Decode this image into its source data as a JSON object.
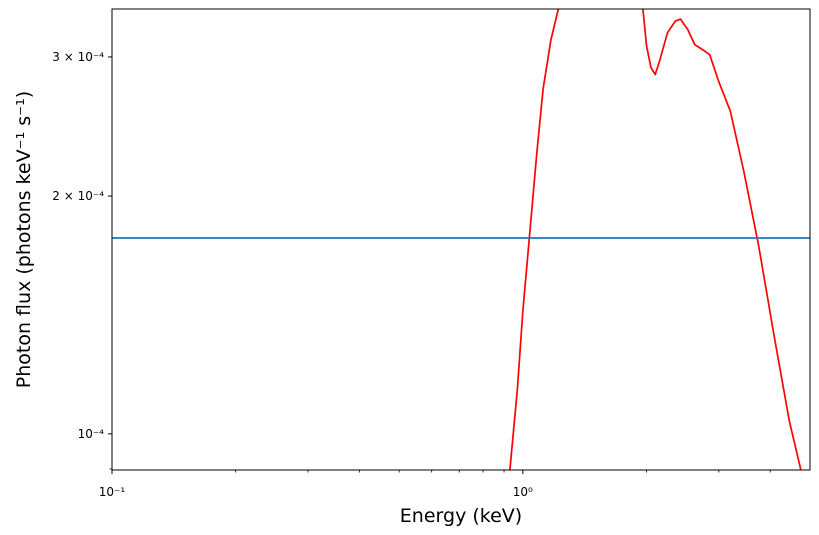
{
  "chart_data": {
    "type": "line",
    "xlabel": "Energy (keV)",
    "ylabel": "Photon flux (photons keV⁻¹ s⁻¹)",
    "x_scale": "log",
    "y_scale": "log",
    "xlim": [
      0.1,
      5.0
    ],
    "ylim": [
      9e-05,
      0.000345
    ],
    "x_ticks": [
      {
        "value": 0.1,
        "label": "10⁻¹"
      },
      {
        "value": 1.0,
        "label": "10⁰"
      }
    ],
    "y_ticks": [
      {
        "value": 0.0001,
        "label": "10⁻⁴"
      },
      {
        "value": 0.0002,
        "label": "2 × 10⁻⁴"
      },
      {
        "value": 0.0003,
        "label": "3 × 10⁻⁴"
      }
    ],
    "grid": false,
    "series": [
      {
        "color": "#ff0000",
        "segments": [
          [
            [
              0.93,
              9e-05
            ],
            [
              0.97,
              0.000114
            ],
            [
              1.0,
              0.000143
            ],
            [
              1.04,
              0.00018
            ],
            [
              1.08,
              0.000225
            ],
            [
              1.12,
              0.000273
            ],
            [
              1.17,
              0.000315
            ],
            [
              1.22,
              0.000345
            ]
          ],
          [
            [
              1.96,
              0.000345
            ],
            [
              2.0,
              0.00031
            ],
            [
              2.05,
              0.000291
            ],
            [
              2.1,
              0.000285
            ],
            [
              2.15,
              0.000296
            ],
            [
              2.25,
              0.000322
            ],
            [
              2.35,
              0.000333
            ],
            [
              2.42,
              0.000335
            ],
            [
              2.52,
              0.000325
            ],
            [
              2.62,
              0.000311
            ],
            [
              2.75,
              0.000306
            ],
            [
              2.85,
              0.000302
            ],
            [
              3.0,
              0.000279
            ],
            [
              3.2,
              0.000256
            ],
            [
              3.45,
              0.000215
            ],
            [
              3.75,
              0.000173
            ],
            [
              4.1,
              0.000132
            ],
            [
              4.45,
              0.000104
            ],
            [
              4.75,
              9e-05
            ]
          ]
        ]
      },
      {
        "color": "#1f77b4",
        "segments": [
          [
            [
              0.1,
              0.000177
            ],
            [
              5.0,
              0.000177
            ]
          ]
        ]
      }
    ]
  }
}
